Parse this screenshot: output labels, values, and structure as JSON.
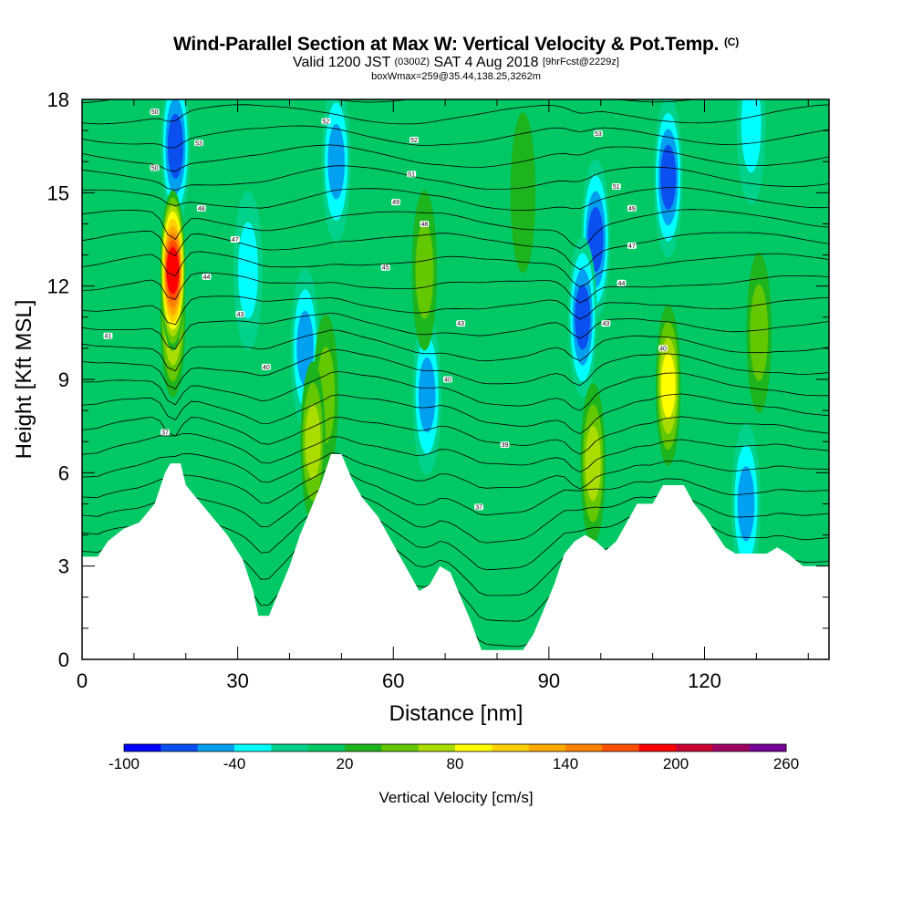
{
  "header": {
    "title": "Wind-Parallel Section at Max W: Vertical Velocity & Pot.Temp.",
    "title_tag": "(C)",
    "valid_prefix": "Valid 1200 JST",
    "valid_utc": "(0300Z)",
    "valid_date": "SAT 4 Aug 2018",
    "forecast_tag": "[9hrFcst@2229z]",
    "box_info": "boxWmax=259@35.44,138.25,3262m"
  },
  "chart_data": {
    "type": "heatmap",
    "xlabel": "Distance [nm]",
    "ylabel": "Height [Kft MSL]",
    "xlim": [
      0,
      144
    ],
    "ylim": [
      0,
      18
    ],
    "x_ticks": [
      0,
      30,
      60,
      90,
      120
    ],
    "y_ticks": [
      0,
      3,
      6,
      9,
      12,
      15,
      18
    ],
    "colorbar": {
      "title": "Vertical Velocity [cm/s]",
      "labels": [
        "-100",
        "-40",
        "20",
        "80",
        "140",
        "200",
        "260"
      ],
      "bins": [
        -100,
        -80,
        -60,
        -40,
        -20,
        0,
        20,
        40,
        60,
        80,
        100,
        120,
        140,
        160,
        180,
        200,
        220,
        240,
        260
      ],
      "colors": [
        "#0000ff",
        "#0a4ff0",
        "#00a0f0",
        "#00ffff",
        "#00d28c",
        "#00c864",
        "#1eb41e",
        "#64c800",
        "#aadc00",
        "#ffff00",
        "#ffd200",
        "#ffaa00",
        "#ff8200",
        "#ff5000",
        "#ff0000",
        "#c80032",
        "#a00064",
        "#780096"
      ]
    },
    "terrain_kft": [
      [
        0,
        3.3
      ],
      [
        3,
        3.3
      ],
      [
        5,
        3.8
      ],
      [
        8,
        4.2
      ],
      [
        11,
        4.4
      ],
      [
        14,
        5.0
      ],
      [
        16,
        6.0
      ],
      [
        17,
        6.3
      ],
      [
        19,
        6.3
      ],
      [
        20,
        5.6
      ],
      [
        22,
        5.2
      ],
      [
        25,
        4.6
      ],
      [
        28,
        4.0
      ],
      [
        31,
        3.2
      ],
      [
        33,
        2.2
      ],
      [
        34,
        1.4
      ],
      [
        36,
        1.4
      ],
      [
        38,
        2.2
      ],
      [
        40,
        3.0
      ],
      [
        42,
        4.0
      ],
      [
        44,
        4.8
      ],
      [
        46,
        5.6
      ],
      [
        48,
        6.6
      ],
      [
        50,
        6.6
      ],
      [
        52,
        5.8
      ],
      [
        54,
        5.2
      ],
      [
        57,
        4.6
      ],
      [
        59,
        4.0
      ],
      [
        61,
        3.4
      ],
      [
        63,
        2.8
      ],
      [
        65,
        2.2
      ],
      [
        67,
        2.4
      ],
      [
        69,
        3.0
      ],
      [
        71,
        2.8
      ],
      [
        73,
        2.0
      ],
      [
        75,
        1.2
      ],
      [
        77,
        0.3
      ],
      [
        80,
        0.3
      ],
      [
        83,
        0.3
      ],
      [
        85,
        0.3
      ],
      [
        87,
        0.8
      ],
      [
        89,
        1.6
      ],
      [
        91,
        2.4
      ],
      [
        93,
        3.4
      ],
      [
        95,
        3.8
      ],
      [
        97,
        4.0
      ],
      [
        99,
        3.8
      ],
      [
        101,
        3.5
      ],
      [
        103,
        3.8
      ],
      [
        105,
        4.4
      ],
      [
        107,
        5.0
      ],
      [
        110,
        5.0
      ],
      [
        112,
        5.6
      ],
      [
        116,
        5.6
      ],
      [
        118,
        5.0
      ],
      [
        120,
        4.6
      ],
      [
        122,
        4.1
      ],
      [
        124,
        3.6
      ],
      [
        126,
        3.4
      ],
      [
        129,
        3.4
      ],
      [
        132,
        3.4
      ],
      [
        134,
        3.6
      ],
      [
        136,
        3.4
      ],
      [
        139,
        3.0
      ],
      [
        144,
        3.0
      ]
    ],
    "features": [
      {
        "x": 17.5,
        "y": 11.0,
        "w": 80
      },
      {
        "x": 17.5,
        "y": 12.5,
        "w": 190
      },
      {
        "x": 18.0,
        "y": 16.5,
        "w": -70
      },
      {
        "x": 32.0,
        "y": 12.5,
        "w": -35
      },
      {
        "x": 43.0,
        "y": 10.0,
        "w": -50
      },
      {
        "x": 44.5,
        "y": 7.0,
        "w": 60
      },
      {
        "x": 47.0,
        "y": 8.5,
        "w": 55
      },
      {
        "x": 49.0,
        "y": 16.0,
        "w": -40
      },
      {
        "x": 66.0,
        "y": 12.5,
        "w": 50
      },
      {
        "x": 66.5,
        "y": 8.5,
        "w": -40
      },
      {
        "x": 85.0,
        "y": 15.0,
        "w": 30
      },
      {
        "x": 96.5,
        "y": 11.0,
        "w": -75
      },
      {
        "x": 99.0,
        "y": 13.5,
        "w": -60
      },
      {
        "x": 98.5,
        "y": 6.3,
        "w": 75
      },
      {
        "x": 113.0,
        "y": 8.8,
        "w": 80
      },
      {
        "x": 113.0,
        "y": 15.5,
        "w": -60
      },
      {
        "x": 128.0,
        "y": 5.0,
        "w": -50
      },
      {
        "x": 129.0,
        "y": 17.2,
        "w": -35
      },
      {
        "x": 130.5,
        "y": 10.5,
        "w": 45
      }
    ],
    "contour_labels": [
      {
        "x": 14,
        "y": 17.6,
        "text": "50"
      },
      {
        "x": 22.5,
        "y": 16.6,
        "text": "53"
      },
      {
        "x": 14,
        "y": 15.8,
        "text": "50"
      },
      {
        "x": 23,
        "y": 14.5,
        "text": "48"
      },
      {
        "x": 29.5,
        "y": 13.5,
        "text": "47"
      },
      {
        "x": 24,
        "y": 12.3,
        "text": "44"
      },
      {
        "x": 30.5,
        "y": 11.1,
        "text": "43"
      },
      {
        "x": 5,
        "y": 10.4,
        "text": "41"
      },
      {
        "x": 35.5,
        "y": 9.4,
        "text": "40"
      },
      {
        "x": 16,
        "y": 7.3,
        "text": "37"
      },
      {
        "x": 47,
        "y": 17.3,
        "text": "52"
      },
      {
        "x": 64,
        "y": 16.7,
        "text": "52"
      },
      {
        "x": 63.5,
        "y": 15.6,
        "text": "51"
      },
      {
        "x": 60.5,
        "y": 14.7,
        "text": "49"
      },
      {
        "x": 66,
        "y": 14.0,
        "text": "48"
      },
      {
        "x": 58.5,
        "y": 12.6,
        "text": "45"
      },
      {
        "x": 73,
        "y": 10.8,
        "text": "43"
      },
      {
        "x": 70.5,
        "y": 9.0,
        "text": "40"
      },
      {
        "x": 81.5,
        "y": 6.9,
        "text": "39"
      },
      {
        "x": 76.5,
        "y": 4.9,
        "text": "37"
      },
      {
        "x": 99.5,
        "y": 16.9,
        "text": "53"
      },
      {
        "x": 103,
        "y": 15.2,
        "text": "51"
      },
      {
        "x": 106,
        "y": 14.5,
        "text": "49"
      },
      {
        "x": 106,
        "y": 13.3,
        "text": "47"
      },
      {
        "x": 104,
        "y": 12.1,
        "text": "44"
      },
      {
        "x": 101,
        "y": 10.8,
        "text": "43"
      },
      {
        "x": 112,
        "y": 10.0,
        "text": "40"
      }
    ]
  }
}
